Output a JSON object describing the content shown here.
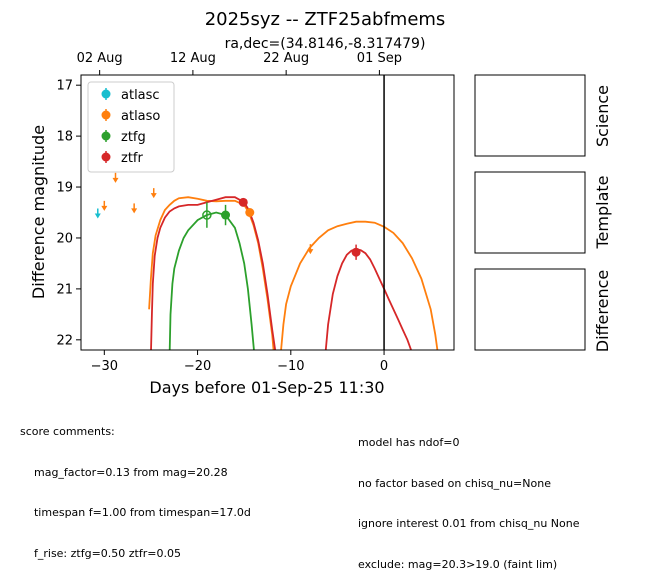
{
  "chart_data": {
    "type": "scatter",
    "title": "2025syz -- ZTF25abfmems",
    "subtitle": "ra,dec=(34.8146,-8.317479)",
    "xlabel": "Days before 01-Sep-25 11:30",
    "ylabel": "Difference magnitude",
    "xlim": [
      -32.5,
      7.5
    ],
    "ylim": [
      22.2,
      16.8
    ],
    "y_inverted": true,
    "x_ticks": [
      -30,
      -20,
      -10,
      0
    ],
    "y_ticks": [
      17,
      18,
      19,
      20,
      21,
      22
    ],
    "top_axis": {
      "ticks": [
        {
          "label": "02 Aug",
          "x": -30.5
        },
        {
          "label": "12 Aug",
          "x": -20.5
        },
        {
          "label": "22 Aug",
          "x": -10.5
        },
        {
          "label": "01 Sep",
          "x": -0.5
        }
      ]
    },
    "vline_x": 0,
    "legend_position": "upper-left",
    "series": [
      {
        "name": "atlasc",
        "color": "#17becf",
        "points": [
          {
            "x": -30.7,
            "y": 19.5,
            "upper_limit": true
          }
        ]
      },
      {
        "name": "atlaso",
        "color": "#ff7f0e",
        "points": [
          {
            "x": -30.0,
            "y": 19.35,
            "upper_limit": true
          },
          {
            "x": -28.8,
            "y": 18.8,
            "upper_limit": true
          },
          {
            "x": -26.8,
            "y": 19.4,
            "upper_limit": true
          },
          {
            "x": -24.7,
            "y": 19.1,
            "upper_limit": true
          },
          {
            "x": -14.4,
            "y": 19.5,
            "err": 0.05
          },
          {
            "x": -7.9,
            "y": 20.2,
            "upper_limit": true
          }
        ]
      },
      {
        "name": "ztfg",
        "color": "#2ca02c",
        "points": [
          {
            "x": -19.0,
            "y": 19.55,
            "err": 0.25,
            "hollow": true
          },
          {
            "x": -17.0,
            "y": 19.55,
            "err": 0.2
          }
        ]
      },
      {
        "name": "ztfr",
        "color": "#d62728",
        "points": [
          {
            "x": -15.1,
            "y": 19.3,
            "err": 0.05
          },
          {
            "x": -3.0,
            "y": 20.28,
            "err": 0.15
          }
        ]
      }
    ],
    "model_curves": [
      {
        "color": "#ff7f0e",
        "x": [
          -25.2,
          -25.0,
          -24.8,
          -24.5,
          -24.0,
          -23.5,
          -23.0,
          -22.5,
          -22.0,
          -21.0,
          -20.0,
          -19.0,
          -18.0,
          -17.0,
          -16.0,
          -15.0,
          -14.5,
          -14.0,
          -13.5,
          -13.0,
          -12.5,
          -12.0,
          -11.8
        ],
        "y": [
          21.4,
          20.8,
          20.3,
          19.95,
          19.65,
          19.45,
          19.35,
          19.27,
          19.22,
          19.2,
          19.23,
          19.27,
          19.28,
          19.27,
          19.27,
          19.35,
          19.5,
          19.75,
          20.1,
          20.6,
          21.2,
          21.9,
          22.3
        ]
      },
      {
        "color": "#d62728",
        "x": [
          -25.0,
          -24.9,
          -24.8,
          -24.6,
          -24.3,
          -24.0,
          -23.5,
          -23.0,
          -22.5,
          -22.0,
          -21.0,
          -20.0,
          -19.0,
          -18.0,
          -17.0,
          -16.0,
          -15.0,
          -14.5,
          -14.0,
          -13.5,
          -13.0,
          -12.5,
          -12.0,
          -11.6
        ],
        "y": [
          22.3,
          21.5,
          20.9,
          20.35,
          20.0,
          19.8,
          19.6,
          19.48,
          19.42,
          19.38,
          19.35,
          19.35,
          19.3,
          19.25,
          19.2,
          19.2,
          19.3,
          19.45,
          19.7,
          20.05,
          20.5,
          21.1,
          21.8,
          22.3
        ]
      },
      {
        "color": "#2ca02c",
        "x": [
          -23.0,
          -22.9,
          -22.7,
          -22.5,
          -22.0,
          -21.5,
          -21.0,
          -20.0,
          -19.0,
          -18.0,
          -17.0,
          -16.0,
          -15.5,
          -15.0,
          -14.6,
          -14.2,
          -13.9
        ],
        "y": [
          22.3,
          21.5,
          20.9,
          20.6,
          20.25,
          20.0,
          19.85,
          19.65,
          19.55,
          19.5,
          19.55,
          19.8,
          20.1,
          20.5,
          21.0,
          21.7,
          22.3
        ]
      },
      {
        "color": "#ff7f0e",
        "x": [
          -11.1,
          -10.8,
          -10.5,
          -10.0,
          -9.0,
          -8.0,
          -7.0,
          -6.0,
          -5.0,
          -4.0,
          -3.0,
          -2.0,
          -1.0,
          0.0,
          1.0,
          2.0,
          3.0,
          4.0,
          5.0,
          5.5,
          5.8
        ],
        "y": [
          22.3,
          21.7,
          21.3,
          20.95,
          20.5,
          20.2,
          20.0,
          19.85,
          19.77,
          19.72,
          19.68,
          19.68,
          19.7,
          19.78,
          19.9,
          20.1,
          20.4,
          20.8,
          21.4,
          21.9,
          22.3
        ]
      },
      {
        "color": "#d62728",
        "x": [
          -6.3,
          -6.0,
          -5.5,
          -5.0,
          -4.5,
          -4.0,
          -3.5,
          -3.0,
          -2.5,
          -2.0,
          -1.5,
          -1.0,
          -0.5,
          0.0,
          0.5,
          1.0,
          1.5,
          2.0,
          2.5,
          3.0
        ],
        "y": [
          22.3,
          21.7,
          21.1,
          20.75,
          20.5,
          20.33,
          20.25,
          20.22,
          20.24,
          20.3,
          20.42,
          20.6,
          20.8,
          21.0,
          21.2,
          21.4,
          21.6,
          21.8,
          22.0,
          22.25
        ]
      }
    ]
  },
  "panels": {
    "science": "Science",
    "template": "Template",
    "difference": "Difference"
  },
  "comments_left": [
    "score comments:",
    "    mag_factor=0.13 from mag=20.28",
    "    timespan f=1.00 from timespan=17.0d",
    "    f_rise: ztfg=0.50 ztfr=0.05"
  ],
  "comments_right": [
    "model has ndof=0",
    "no factor based on chisq_nu=None",
    "ignore interest 0.01 from chisq_nu None",
    "exclude: mag=20.3>19.0 (faint lim)"
  ]
}
